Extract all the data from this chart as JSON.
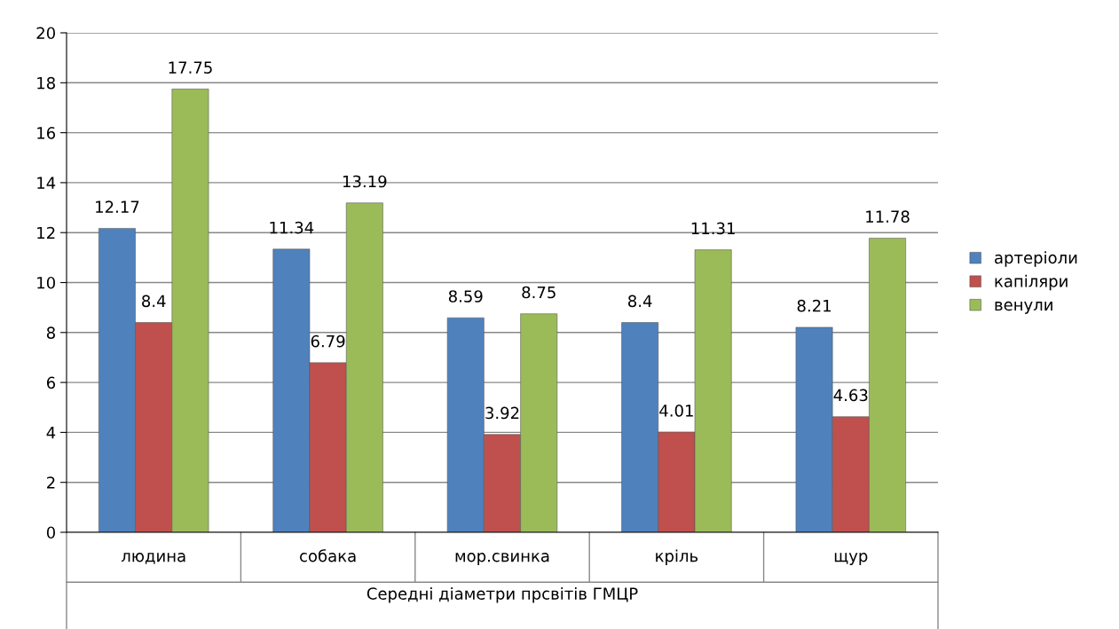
{
  "chart_data": {
    "type": "bar",
    "xlabel": "Середні діаметри прсвітів ГМЦР",
    "categories": [
      "людина",
      "собака",
      "мор.свинка",
      "кріль",
      "щур"
    ],
    "series": [
      {
        "name": "артеріоли",
        "color": "#4f81bd",
        "values": [
          12.17,
          11.34,
          8.59,
          8.4,
          8.21
        ]
      },
      {
        "name": "капіляри",
        "color": "#c0504d",
        "values": [
          8.4,
          6.79,
          3.92,
          4.01,
          4.63
        ]
      },
      {
        "name": "венули",
        "color": "#9bbb59",
        "values": [
          17.75,
          13.19,
          8.75,
          11.31,
          11.78
        ]
      }
    ],
    "ylim": [
      0,
      20
    ],
    "yticks": [
      0,
      2,
      4,
      6,
      8,
      10,
      12,
      14,
      16,
      18,
      20
    ],
    "grid": "y",
    "legend": "right",
    "data_labels": true
  }
}
